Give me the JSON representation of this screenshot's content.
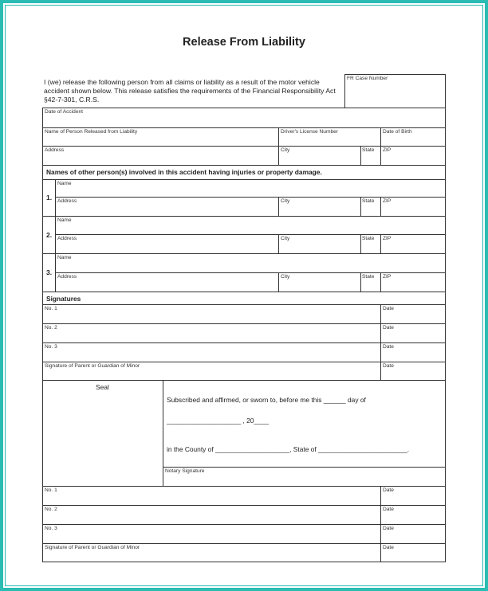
{
  "title": "Release From Liability",
  "intro": "I (we) release the following person from all claims or liability as a result of the motor vehicle accident shown below. This release satisfies the requirements of the Financial Responsibility Act §42-7-301, C.R.S.",
  "fields": {
    "fr_case": "FR Case Number",
    "date_accident": "Date of Accident",
    "name_released": "Name of Person Released from Liability",
    "dl_number": "Driver's License Number",
    "dob": "Date of Birth",
    "address": "Address",
    "city": "City",
    "state": "State",
    "zip": "ZIP",
    "name": "Name"
  },
  "others_header": "Names of other person(s) involved in this accident having injuries or property damage.",
  "person_numbers": [
    "1.",
    "2.",
    "3."
  ],
  "signatures_header": "Signatures",
  "signature_rows": [
    "No. 1",
    "No. 2",
    "No. 3",
    "Signature of Parent or Guardian of Minor"
  ],
  "date_label": "Date",
  "notary": {
    "seal": "Seal",
    "line1": "Subscribed and affirmed, or sworn to, before me this ______ day of",
    "line2": "____________________ , 20____",
    "line3": "in the County of ____________________, State of ________________________.",
    "signature": "Notary Signature"
  },
  "colors": {
    "frame": "#2bbcb4"
  }
}
